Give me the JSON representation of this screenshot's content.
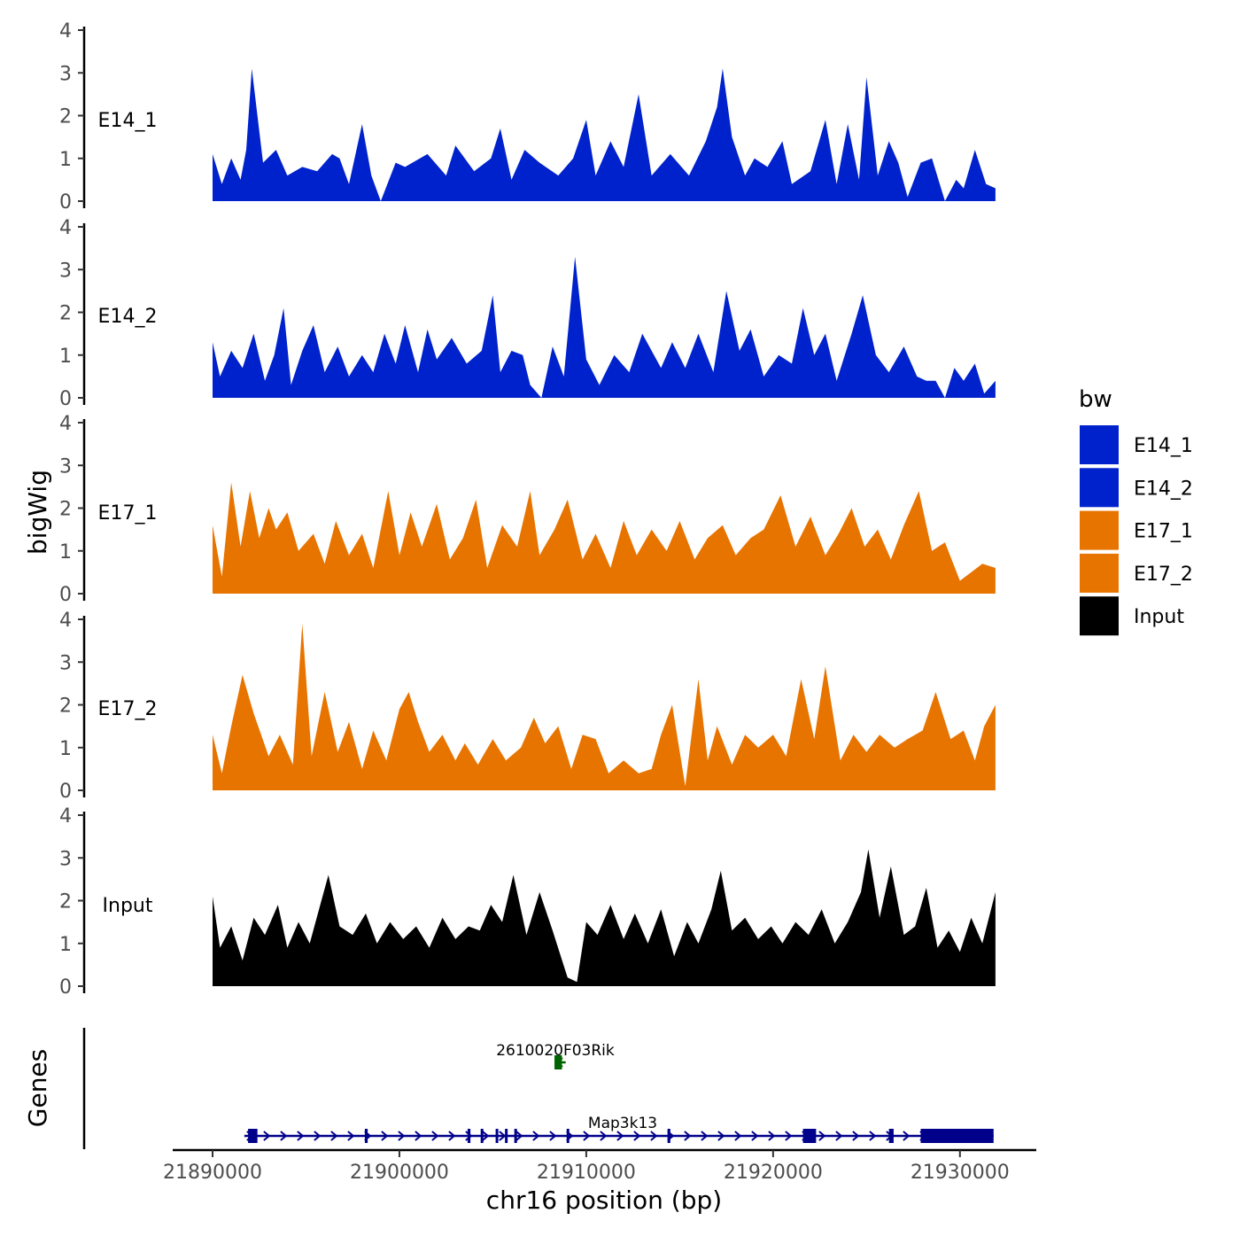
{
  "chart_data": [
    {
      "type": "area",
      "title": "",
      "ylabel": "bigWig",
      "xlabel": "chr16 position (bp)",
      "xlim": [
        21890000,
        21932000
      ],
      "ylim": [
        0,
        4
      ],
      "y_ticks": [
        "0",
        "1",
        "2",
        "3",
        "4"
      ],
      "x_ticks": [
        {
          "value": 21890000,
          "label": "21890000"
        },
        {
          "value": 21900000,
          "label": "21900000"
        },
        {
          "value": 21910000,
          "label": "21910000"
        },
        {
          "value": 21920000,
          "label": "21920000"
        },
        {
          "value": 21930000,
          "label": "21930000"
        }
      ],
      "legend": {
        "title": "bw",
        "position": "right",
        "entries": [
          {
            "label": "E14_1",
            "color": "#0022CC"
          },
          {
            "label": "E14_2",
            "color": "#0022CC"
          },
          {
            "label": "E17_1",
            "color": "#E87400"
          },
          {
            "label": "E17_2",
            "color": "#E87400"
          },
          {
            "label": "Input",
            "color": "#000000"
          }
        ]
      },
      "series": [
        {
          "name": "E14_1",
          "color": "#0022CC",
          "x": [
            21890000,
            21890500,
            21891000,
            21891500,
            21891800,
            21892100,
            21892700,
            21893400,
            21894000,
            21894800,
            21895600,
            21896400,
            21896800,
            21897300,
            21898000,
            21898500,
            21899000,
            21899800,
            21900300,
            21901500,
            21902500,
            21903000,
            21904000,
            21904900,
            21905400,
            21906000,
            21906700,
            21907500,
            21908500,
            21909300,
            21910000,
            21910500,
            21911300,
            21912000,
            21912800,
            21913500,
            21914500,
            21915500,
            21916400,
            21917000,
            21917300,
            21917800,
            21918500,
            21919000,
            21919700,
            21920500,
            21921000,
            21922000,
            21922800,
            21923400,
            21924000,
            21924600,
            21925000,
            21925600,
            21926200,
            21926700,
            21927200,
            21927900,
            21928500,
            21929200,
            21929800,
            21930200,
            21930800,
            21931400,
            21931900
          ],
          "values": [
            1.1,
            0.4,
            1.0,
            0.5,
            1.2,
            3.1,
            0.9,
            1.2,
            0.6,
            0.8,
            0.7,
            1.1,
            1.0,
            0.4,
            1.8,
            0.6,
            0.0,
            0.9,
            0.8,
            1.1,
            0.6,
            1.3,
            0.7,
            1.0,
            1.7,
            0.5,
            1.2,
            0.9,
            0.6,
            1.0,
            1.9,
            0.6,
            1.4,
            0.8,
            2.5,
            0.6,
            1.1,
            0.6,
            1.4,
            2.2,
            3.1,
            1.5,
            0.6,
            1.0,
            0.8,
            1.4,
            0.4,
            0.7,
            1.9,
            0.4,
            1.8,
            0.5,
            2.9,
            0.6,
            1.4,
            0.9,
            0.1,
            0.9,
            1.0,
            0.0,
            0.5,
            0.3,
            1.2,
            0.4,
            0.3
          ]
        },
        {
          "name": "E14_2",
          "color": "#0022CC",
          "x": [
            21890000,
            21890400,
            21891000,
            21891600,
            21892200,
            21892800,
            21893300,
            21893800,
            21894200,
            21894800,
            21895400,
            21896000,
            21896700,
            21897300,
            21898000,
            21898600,
            21899200,
            21899800,
            21900300,
            21901000,
            21901500,
            21902000,
            21902800,
            21903600,
            21904400,
            21905000,
            21905400,
            21906000,
            21906600,
            21907000,
            21907600,
            21908200,
            21908800,
            21909400,
            21910000,
            21910700,
            21911500,
            21912300,
            21913000,
            21913500,
            21914000,
            21914600,
            21915300,
            21916000,
            21916800,
            21917500,
            21918200,
            21918800,
            21919500,
            21920300,
            21921000,
            21921600,
            21922200,
            21922800,
            21923400,
            21924200,
            21924800,
            21925500,
            21926200,
            21927000,
            21927700,
            21928200,
            21928700,
            21929200,
            21929700,
            21930200,
            21930800,
            21931300,
            21931900
          ],
          "values": [
            1.3,
            0.5,
            1.1,
            0.7,
            1.5,
            0.4,
            1.0,
            2.1,
            0.3,
            1.1,
            1.7,
            0.6,
            1.2,
            0.5,
            1.0,
            0.6,
            1.5,
            0.8,
            1.7,
            0.6,
            1.6,
            0.9,
            1.4,
            0.8,
            1.1,
            2.4,
            0.6,
            1.1,
            1.0,
            0.3,
            0.0,
            1.2,
            0.5,
            3.3,
            0.9,
            0.3,
            1.0,
            0.6,
            1.5,
            1.1,
            0.7,
            1.3,
            0.7,
            1.5,
            0.6,
            2.5,
            1.1,
            1.6,
            0.5,
            1.0,
            0.8,
            2.1,
            1.0,
            1.5,
            0.4,
            1.5,
            2.4,
            1.0,
            0.6,
            1.2,
            0.5,
            0.4,
            0.4,
            0.0,
            0.7,
            0.4,
            0.8,
            0.1,
            0.4
          ]
        },
        {
          "name": "E17_1",
          "color": "#E87400",
          "x": [
            21890000,
            21890500,
            21891000,
            21891500,
            21892000,
            21892500,
            21893000,
            21893400,
            21894000,
            21894600,
            21895400,
            21896000,
            21896600,
            21897300,
            21898000,
            21898600,
            21899400,
            21900000,
            21900600,
            21901200,
            21902000,
            21902700,
            21903400,
            21904100,
            21904700,
            21905500,
            21906300,
            21907000,
            21907500,
            21908300,
            21909000,
            21909800,
            21910500,
            21911300,
            21912000,
            21912700,
            21913500,
            21914300,
            21915000,
            21915800,
            21916500,
            21917300,
            21918000,
            21918800,
            21919500,
            21920400,
            21921200,
            21922000,
            21922800,
            21923500,
            21924200,
            21924900,
            21925600,
            21926300,
            21927000,
            21927800,
            21928500,
            21929200,
            21930000,
            21930600,
            21931200,
            21931900
          ],
          "values": [
            1.6,
            0.4,
            2.6,
            1.1,
            2.4,
            1.3,
            2.0,
            1.5,
            1.9,
            1.0,
            1.4,
            0.7,
            1.7,
            0.9,
            1.4,
            0.6,
            2.4,
            0.9,
            1.9,
            1.1,
            2.1,
            0.8,
            1.3,
            2.2,
            0.6,
            1.6,
            1.1,
            2.4,
            0.9,
            1.5,
            2.2,
            0.8,
            1.4,
            0.6,
            1.7,
            0.9,
            1.5,
            1.0,
            1.7,
            0.8,
            1.3,
            1.6,
            0.9,
            1.3,
            1.5,
            2.3,
            1.1,
            1.8,
            0.9,
            1.4,
            2.0,
            1.1,
            1.5,
            0.8,
            1.6,
            2.4,
            1.0,
            1.2,
            0.3,
            0.5,
            0.7,
            0.6
          ]
        },
        {
          "name": "E17_2",
          "color": "#E87400",
          "x": [
            21890000,
            21890500,
            21891000,
            21891600,
            21892200,
            21893000,
            21893600,
            21894300,
            21894800,
            21895300,
            21896000,
            21896700,
            21897300,
            21898000,
            21898600,
            21899300,
            21900000,
            21900500,
            21901000,
            21901600,
            21902300,
            21903000,
            21903500,
            21904200,
            21905000,
            21905700,
            21906500,
            21907200,
            21907800,
            21908500,
            21909200,
            21909800,
            21910500,
            21911200,
            21912000,
            21912800,
            21913500,
            21914000,
            21914600,
            21915300,
            21916000,
            21916500,
            21917000,
            21917800,
            21918500,
            21919200,
            21920000,
            21920700,
            21921500,
            21922200,
            21922800,
            21923600,
            21924300,
            21925000,
            21925700,
            21926500,
            21927200,
            21928000,
            21928700,
            21929500,
            21930200,
            21930800,
            21931300,
            21931900
          ],
          "values": [
            1.3,
            0.4,
            1.5,
            2.7,
            1.8,
            0.8,
            1.3,
            0.6,
            3.9,
            0.8,
            2.3,
            0.9,
            1.6,
            0.5,
            1.4,
            0.7,
            1.9,
            2.3,
            1.6,
            0.9,
            1.3,
            0.7,
            1.1,
            0.6,
            1.2,
            0.7,
            1.0,
            1.7,
            1.1,
            1.5,
            0.5,
            1.3,
            1.2,
            0.4,
            0.7,
            0.4,
            0.5,
            1.3,
            2.0,
            0.1,
            2.6,
            0.7,
            1.5,
            0.6,
            1.3,
            1.0,
            1.3,
            0.8,
            2.6,
            1.2,
            2.9,
            0.7,
            1.3,
            0.9,
            1.3,
            1.0,
            1.2,
            1.4,
            2.3,
            1.2,
            1.4,
            0.7,
            1.5,
            2.0
          ]
        },
        {
          "name": "Input",
          "color": "#000000",
          "x": [
            21890000,
            21890400,
            21891000,
            21891600,
            21892200,
            21892800,
            21893500,
            21894000,
            21894600,
            21895200,
            21895700,
            21896200,
            21896800,
            21897500,
            21898200,
            21898800,
            21899500,
            21900200,
            21900900,
            21901600,
            21902300,
            21903000,
            21903700,
            21904300,
            21904900,
            21905500,
            21906100,
            21906800,
            21907500,
            21908200,
            21909000,
            21909500,
            21910000,
            21910600,
            21911300,
            21912000,
            21912600,
            21913300,
            21914000,
            21914700,
            21915400,
            21916000,
            21916700,
            21917200,
            21917800,
            21918500,
            21919200,
            21919900,
            21920500,
            21921200,
            21921900,
            21922600,
            21923300,
            21924000,
            21924700,
            21925100,
            21925700,
            21926300,
            21927000,
            21927600,
            21928200,
            21928800,
            21929400,
            21930000,
            21930600,
            21931200,
            21931900
          ],
          "values": [
            2.1,
            0.9,
            1.4,
            0.6,
            1.6,
            1.2,
            1.9,
            0.9,
            1.5,
            1.0,
            1.8,
            2.6,
            1.4,
            1.2,
            1.7,
            1.0,
            1.5,
            1.1,
            1.4,
            0.9,
            1.6,
            1.1,
            1.4,
            1.3,
            1.9,
            1.5,
            2.6,
            1.2,
            2.2,
            1.3,
            0.2,
            0.1,
            1.5,
            1.2,
            1.9,
            1.1,
            1.7,
            1.0,
            1.8,
            0.7,
            1.5,
            1.0,
            1.8,
            2.7,
            1.3,
            1.6,
            1.1,
            1.4,
            1.0,
            1.5,
            1.2,
            1.8,
            1.0,
            1.5,
            2.2,
            3.2,
            1.6,
            2.8,
            1.2,
            1.4,
            2.3,
            0.9,
            1.3,
            0.8,
            1.6,
            1.0,
            2.2
          ]
        }
      ]
    },
    {
      "type": "gene_track",
      "ylabel": "Genes",
      "genes": [
        {
          "name": "2610020F03Rik",
          "color": "#006400",
          "start": 21908300,
          "end": 21908900,
          "strand": "-",
          "row": 0,
          "exons": [
            [
              21908300,
              21908700
            ]
          ]
        },
        {
          "name": "Map3k13",
          "color": "#00008B",
          "start": 21891700,
          "end": 21931800,
          "strand": "+",
          "row": 1,
          "exons": [
            [
              21891900,
              21892400
            ],
            [
              21898150,
              21898300
            ],
            [
              21903650,
              21903800
            ],
            [
              21904350,
              21904450
            ],
            [
              21905150,
              21905250
            ],
            [
              21905650,
              21905750
            ],
            [
              21906150,
              21906250
            ],
            [
              21908950,
              21909050
            ],
            [
              21914350,
              21914500
            ],
            [
              21921600,
              21922300
            ],
            [
              21926200,
              21926450
            ],
            [
              21927900,
              21931800
            ]
          ]
        }
      ]
    }
  ]
}
